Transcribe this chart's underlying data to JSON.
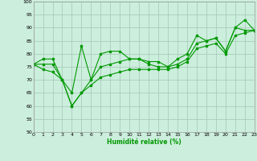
{
  "xlabel": "Humidité relative (%)",
  "ylabel": "",
  "bg_color": "#cceedd",
  "grid_color": "#aaccbb",
  "line_color": "#009900",
  "xmin": 0,
  "xmax": 23,
  "ymin": 50,
  "ymax": 100,
  "yticks": [
    50,
    55,
    60,
    65,
    70,
    75,
    80,
    85,
    90,
    95,
    100
  ],
  "xticks": [
    0,
    1,
    2,
    3,
    4,
    5,
    6,
    7,
    8,
    9,
    10,
    11,
    12,
    13,
    14,
    15,
    16,
    17,
    18,
    19,
    20,
    21,
    22,
    23
  ],
  "series": [
    [
      76,
      78,
      78,
      70,
      65,
      83,
      70,
      80,
      81,
      81,
      78,
      78,
      77,
      77,
      75,
      78,
      80,
      87,
      85,
      86,
      81,
      90,
      93,
      89
    ],
    [
      76,
      76,
      76,
      70,
      60,
      65,
      70,
      75,
      76,
      77,
      78,
      78,
      76,
      75,
      75,
      76,
      78,
      84,
      85,
      86,
      81,
      90,
      89,
      89
    ],
    [
      76,
      74,
      73,
      70,
      60,
      65,
      68,
      71,
      72,
      73,
      74,
      74,
      74,
      74,
      74,
      75,
      77,
      82,
      83,
      84,
      80,
      87,
      88,
      89
    ]
  ]
}
